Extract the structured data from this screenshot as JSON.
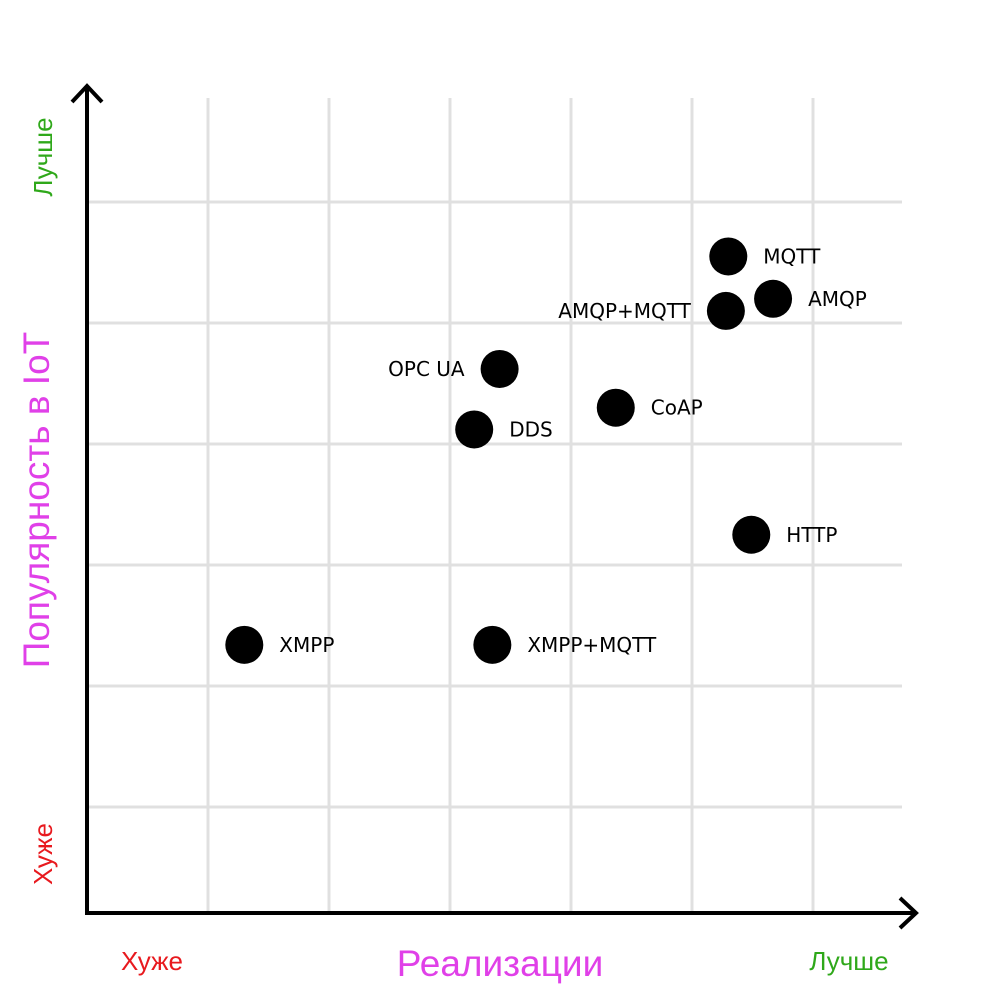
{
  "chart_data": {
    "type": "scatter",
    "title": "",
    "xlabel": "Реализации",
    "ylabel": "Популярность в IoT",
    "x_low_label": "Хуже",
    "x_high_label": "Лучше",
    "y_low_label": "Хуже",
    "y_high_label": "Лучше",
    "grid": true,
    "xlim": [
      0,
      7
    ],
    "ylim": [
      0,
      7
    ],
    "points": [
      {
        "label": "MQTT",
        "x": 5.3,
        "y": 5.55
      },
      {
        "label": "AMQP",
        "x": 5.67,
        "y": 5.2
      },
      {
        "label": "AMQP+MQTT",
        "x": 5.28,
        "y": 5.1
      },
      {
        "label": "OPC UA",
        "x": 3.41,
        "y": 4.62
      },
      {
        "label": "CoAP",
        "x": 4.37,
        "y": 4.3
      },
      {
        "label": "DDS",
        "x": 3.2,
        "y": 4.12
      },
      {
        "label": "HTTP",
        "x": 5.49,
        "y": 3.25
      },
      {
        "label": "XMPP",
        "x": 1.3,
        "y": 2.34
      },
      {
        "label": "XMPP+MQTT",
        "x": 3.35,
        "y": 2.34
      }
    ],
    "colors": {
      "point": "#000000",
      "grid": "#e0e0e0",
      "axis": "#000000",
      "worse": "#e8191e",
      "better": "#2fa81a",
      "axis_title": "#e040e8"
    }
  }
}
